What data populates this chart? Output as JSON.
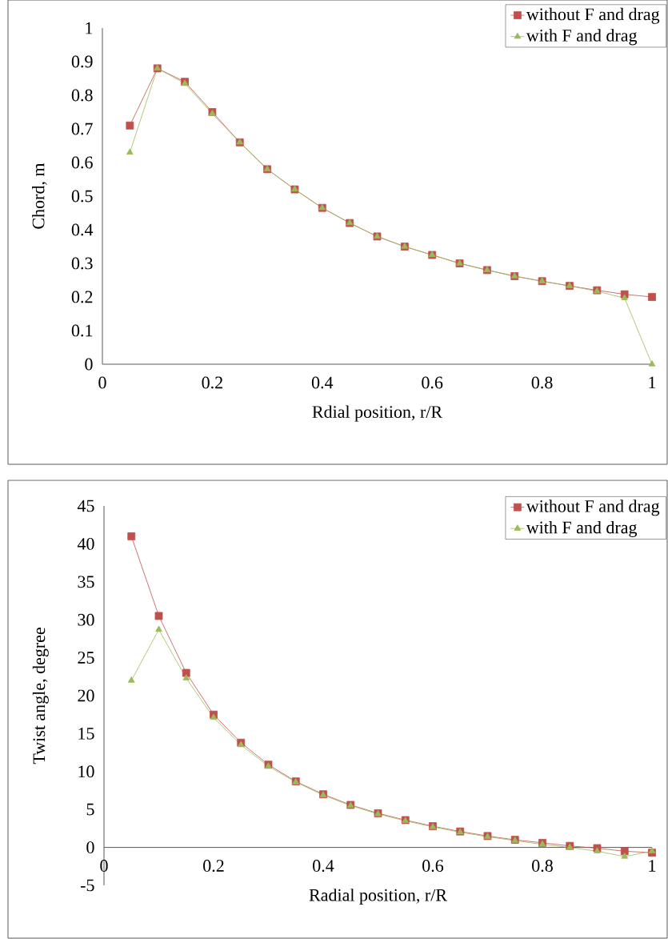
{
  "chart_data": [
    {
      "type": "line",
      "xlabel": "Rdial position, r/R",
      "ylabel": "Chord, m",
      "x": [
        0.05,
        0.1,
        0.15,
        0.2,
        0.25,
        0.3,
        0.35,
        0.4,
        0.45,
        0.5,
        0.55,
        0.6,
        0.65,
        0.7,
        0.75,
        0.8,
        0.85,
        0.9,
        0.95,
        1.0
      ],
      "series": [
        {
          "name": "without F and drag",
          "color": "#c0504d",
          "marker": "square",
          "values": [
            0.71,
            0.88,
            0.84,
            0.75,
            0.66,
            0.58,
            0.52,
            0.465,
            0.42,
            0.38,
            0.35,
            0.325,
            0.3,
            0.28,
            0.262,
            0.247,
            0.233,
            0.22,
            0.208,
            0.2
          ]
        },
        {
          "name": "with F and drag",
          "color": "#9bbb59",
          "marker": "triangle",
          "values": [
            0.63,
            0.88,
            0.835,
            0.745,
            0.66,
            0.58,
            0.52,
            0.465,
            0.42,
            0.38,
            0.35,
            0.325,
            0.3,
            0.28,
            0.262,
            0.247,
            0.233,
            0.217,
            0.197,
            0.0
          ]
        }
      ],
      "xlim": [
        0,
        1
      ],
      "ylim": [
        0,
        1
      ],
      "xticks": [
        0,
        0.2,
        0.4,
        0.6,
        0.8,
        1
      ],
      "yticks": [
        0,
        0.1,
        0.2,
        0.3,
        0.4,
        0.5,
        0.6,
        0.7,
        0.8,
        0.9,
        1
      ],
      "legend": "top right",
      "grid": false,
      "line_style": "solid"
    },
    {
      "type": "line",
      "xlabel": "Radial position, r/R",
      "ylabel": "Twist angle, degree",
      "x": [
        0.05,
        0.1,
        0.15,
        0.2,
        0.25,
        0.3,
        0.35,
        0.4,
        0.45,
        0.5,
        0.55,
        0.6,
        0.65,
        0.7,
        0.75,
        0.8,
        0.85,
        0.9,
        0.95,
        1.0
      ],
      "series": [
        {
          "name": "without F and drag",
          "color": "#c0504d",
          "marker": "square",
          "values": [
            41,
            30.5,
            23,
            17.5,
            13.8,
            10.9,
            8.7,
            7.0,
            5.6,
            4.5,
            3.6,
            2.8,
            2.1,
            1.5,
            1.0,
            0.6,
            0.2,
            -0.1,
            -0.5,
            -0.7
          ]
        },
        {
          "name": "with F and drag",
          "color": "#9bbb59",
          "marker": "triangle",
          "values": [
            22,
            28.7,
            22.3,
            17.1,
            13.5,
            10.7,
            8.6,
            6.9,
            5.5,
            4.4,
            3.5,
            2.7,
            2.0,
            1.4,
            0.9,
            0.4,
            0.0,
            -0.5,
            -1.2,
            -0.5
          ]
        }
      ],
      "xlim": [
        0,
        1
      ],
      "ylim": [
        -5,
        45
      ],
      "xticks": [
        0,
        0.2,
        0.4,
        0.6,
        0.8,
        1
      ],
      "yticks": [
        -5,
        0,
        5,
        10,
        15,
        20,
        25,
        30,
        35,
        40,
        45
      ],
      "legend": "top right",
      "grid": false,
      "line_style": "solid"
    }
  ]
}
